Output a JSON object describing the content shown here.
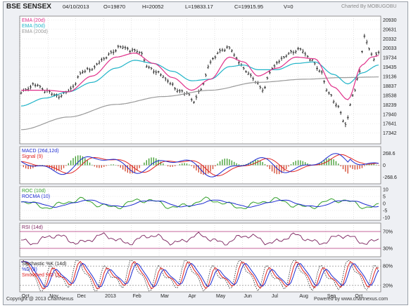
{
  "header": {
    "symbol": "BSE SENSEX",
    "date": "04/10/2013",
    "open": "O=19870",
    "high": "H=20052",
    "low": "L=19833.17",
    "close": "C=19915.95",
    "volume": "V=0",
    "brand": "Charted By MOBUGOBU"
  },
  "footer": {
    "copyright": "Copyright @ 2013 ChartNexus",
    "powered": "Powered by www.chartnexus.com"
  },
  "colors": {
    "ema20": "#e0308a",
    "ema50": "#20b4c8",
    "ema200": "#9a9a9a",
    "price_bar": "#1a1a1a",
    "macd": "#1c2bd0",
    "signal": "#e02222",
    "hist_up": "#3a9a2a",
    "hist_down": "#d2452d",
    "roc": "#32a02a",
    "rocma": "#1c2bd0",
    "rsi": "#7a1f5c",
    "stoch_k": "#222222",
    "stoch_d": "#e02222",
    "stoch_sd": "#1c2bd0",
    "level": "#b0307a"
  },
  "chart_data": [
    {
      "type": "line",
      "title": "",
      "legend": [
        "EMA (20d)",
        "EMA (50d)",
        "EMA (200d)"
      ],
      "legend_position": "top-left",
      "grid": true,
      "y_ticks": [
        "20930",
        "20631",
        "20332",
        "20033",
        "19734",
        "19435",
        "19136",
        "18837",
        "18538",
        "18239",
        "17940",
        "17641",
        "17342"
      ],
      "ylim": [
        17000,
        21050
      ],
      "x_ticks": [
        "Oct",
        "Nov",
        "Dec",
        "2013",
        "Feb",
        "Mar",
        "Apr",
        "May",
        "Jun",
        "Jul",
        "Aug",
        "Sep",
        "Oct"
      ],
      "price_anchors": [
        [
          0,
          18650
        ],
        [
          6,
          18880
        ],
        [
          11,
          18660
        ],
        [
          16,
          18500
        ],
        [
          21,
          18740
        ],
        [
          26,
          19300
        ],
        [
          30,
          19380
        ],
        [
          34,
          19650
        ],
        [
          38,
          19880
        ],
        [
          42,
          20090
        ],
        [
          46,
          19980
        ],
        [
          50,
          19920
        ],
        [
          54,
          19400
        ],
        [
          58,
          19250
        ],
        [
          62,
          19000
        ],
        [
          66,
          18700
        ],
        [
          70,
          18600
        ],
        [
          73,
          18350
        ],
        [
          76,
          18750
        ],
        [
          80,
          19600
        ],
        [
          84,
          19950
        ],
        [
          88,
          20050
        ],
        [
          92,
          19600
        ],
        [
          95,
          19300
        ],
        [
          99,
          19000
        ],
        [
          102,
          18700
        ],
        [
          106,
          19400
        ],
        [
          110,
          19700
        ],
        [
          114,
          19900
        ],
        [
          118,
          20000
        ],
        [
          122,
          19700
        ],
        [
          126,
          19350
        ],
        [
          130,
          18600
        ],
        [
          134,
          18150
        ],
        [
          137,
          17600
        ],
        [
          140,
          18500
        ],
        [
          143,
          19300
        ],
        [
          145,
          20450
        ],
        [
          147,
          20000
        ],
        [
          149,
          19700
        ],
        [
          151,
          19900
        ]
      ],
      "ema20_anchors": [
        [
          0,
          18700
        ],
        [
          10,
          18700
        ],
        [
          20,
          18650
        ],
        [
          30,
          19150
        ],
        [
          40,
          19750
        ],
        [
          48,
          19880
        ],
        [
          56,
          19550
        ],
        [
          64,
          19100
        ],
        [
          72,
          18700
        ],
        [
          80,
          19050
        ],
        [
          88,
          19750
        ],
        [
          94,
          19600
        ],
        [
          100,
          19150
        ],
        [
          108,
          19400
        ],
        [
          116,
          19750
        ],
        [
          124,
          19700
        ],
        [
          132,
          18800
        ],
        [
          138,
          18400
        ],
        [
          144,
          19500
        ],
        [
          148,
          19750
        ],
        [
          151,
          19800
        ]
      ],
      "ema50_anchors": [
        [
          0,
          18200
        ],
        [
          10,
          18450
        ],
        [
          20,
          18650
        ],
        [
          30,
          18950
        ],
        [
          40,
          19400
        ],
        [
          48,
          19650
        ],
        [
          56,
          19550
        ],
        [
          64,
          19300
        ],
        [
          72,
          19000
        ],
        [
          80,
          19050
        ],
        [
          88,
          19450
        ],
        [
          94,
          19500
        ],
        [
          100,
          19350
        ],
        [
          108,
          19350
        ],
        [
          116,
          19550
        ],
        [
          124,
          19600
        ],
        [
          132,
          19200
        ],
        [
          138,
          18900
        ],
        [
          144,
          19250
        ],
        [
          151,
          19500
        ]
      ],
      "ema200_anchors": [
        [
          0,
          17450
        ],
        [
          20,
          17850
        ],
        [
          40,
          18250
        ],
        [
          60,
          18500
        ],
        [
          80,
          18700
        ],
        [
          100,
          18950
        ],
        [
          120,
          19050
        ],
        [
          135,
          19100
        ],
        [
          151,
          19120
        ]
      ]
    },
    {
      "type": "line",
      "title": "",
      "legend": [
        "MACD (26d,12d)",
        "Signal (9)"
      ],
      "y_ticks": [
        "268.6",
        "0",
        "-268.6"
      ],
      "ylim": [
        -420,
        420
      ]
    },
    {
      "type": "line",
      "title": "",
      "legend": [
        "ROC (10d)",
        "ROCMA (10)"
      ],
      "y_ticks": [
        "10",
        "5",
        "0",
        "-5",
        "-10"
      ],
      "ylim": [
        -12,
        12
      ]
    },
    {
      "type": "line",
      "title": "",
      "legend": [
        "RSI (14d)"
      ],
      "y_ticks": [
        "70%",
        "30%"
      ],
      "ylim": [
        10,
        90
      ]
    },
    {
      "type": "line",
      "title": "",
      "legend": [
        "Stochastic %K (14d)",
        "%D (3)",
        "Smoothed %D (3)"
      ],
      "y_ticks": [
        "80%",
        "20%"
      ],
      "ylim": [
        0,
        100
      ]
    }
  ]
}
